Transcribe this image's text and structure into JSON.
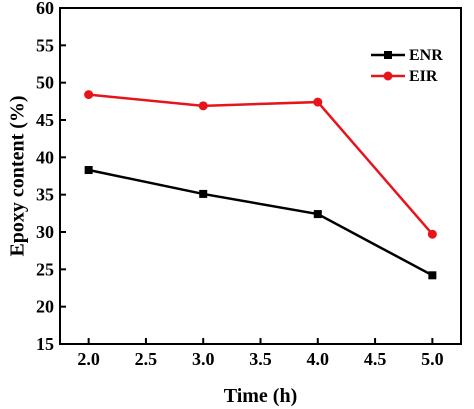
{
  "chart_data": {
    "type": "line",
    "title": "",
    "xlabel": "Time (h)",
    "ylabel": "Epoxy content (%)",
    "xlim": [
      1.75,
      5.25
    ],
    "ylim": [
      15,
      60
    ],
    "x_ticks": [
      2.0,
      2.5,
      3.0,
      3.5,
      4.0,
      4.5,
      5.0
    ],
    "x_tick_labels": [
      "2.0",
      "2.5",
      "3.0",
      "3.5",
      "4.0",
      "4.5",
      "5.0"
    ],
    "y_ticks": [
      15,
      20,
      25,
      30,
      35,
      40,
      45,
      50,
      55,
      60
    ],
    "y_tick_labels": [
      "15",
      "20",
      "25",
      "30",
      "35",
      "40",
      "45",
      "50",
      "55",
      "60"
    ],
    "grid": false,
    "legend_position": "top-right",
    "series": [
      {
        "name": "ENR",
        "color": "#000000",
        "marker": "square",
        "x": [
          2.0,
          3.0,
          4.0,
          5.0
        ],
        "values": [
          38.3,
          35.1,
          32.4,
          24.2
        ]
      },
      {
        "name": "EIR",
        "color": "#e8141c",
        "marker": "circle",
        "x": [
          2.0,
          3.0,
          4.0,
          5.0
        ],
        "values": [
          48.4,
          46.9,
          47.4,
          29.7
        ]
      }
    ]
  }
}
